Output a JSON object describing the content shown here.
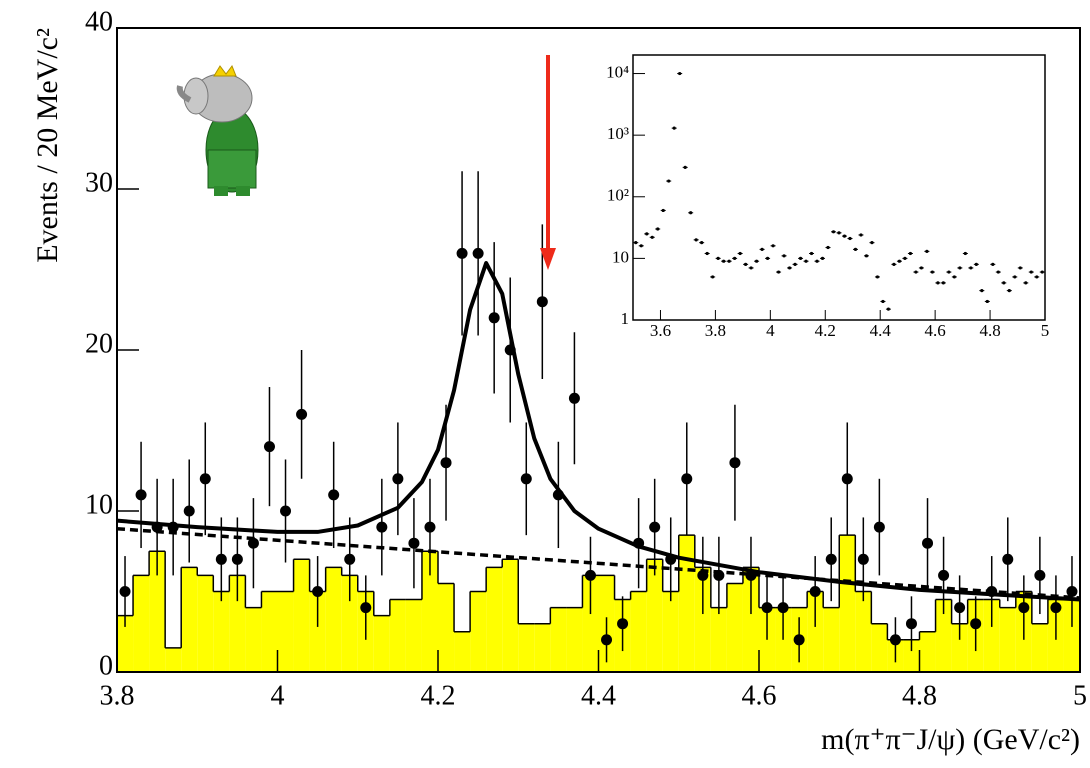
{
  "chart_data": [
    {
      "type": "errorbar",
      "x_label": "m(π⁺π⁻J/ψ) (GeV/c²)",
      "y_label": "Events / 20 MeV/c²",
      "xlim": [
        3.8,
        5
      ],
      "ylim": [
        0,
        40
      ],
      "xticks": [
        3.8,
        4,
        4.2,
        4.4,
        4.6,
        4.8,
        5
      ],
      "yticks": [
        0,
        10,
        20,
        30,
        40
      ],
      "color": "#000000",
      "x": [
        3.81,
        3.83,
        3.85,
        3.87,
        3.89,
        3.91,
        3.93,
        3.95,
        3.97,
        3.99,
        4.01,
        4.03,
        4.05,
        4.07,
        4.09,
        4.11,
        4.13,
        4.15,
        4.17,
        4.19,
        4.21,
        4.23,
        4.25,
        4.27,
        4.29,
        4.31,
        4.33,
        4.35,
        4.37,
        4.39,
        4.41,
        4.43,
        4.45,
        4.47,
        4.49,
        4.51,
        4.53,
        4.55,
        4.57,
        4.59,
        4.61,
        4.63,
        4.65,
        4.67,
        4.69,
        4.71,
        4.73,
        4.75,
        4.77,
        4.79,
        4.81,
        4.83,
        4.85,
        4.87,
        4.89,
        4.91,
        4.93,
        4.95,
        4.97,
        4.99
      ],
      "values": [
        5,
        11,
        9,
        9,
        10,
        12,
        7,
        7,
        8,
        14,
        10,
        16,
        5,
        11,
        7,
        4,
        9,
        12,
        8,
        9,
        13,
        26,
        26,
        22,
        20,
        12,
        23,
        11,
        17,
        6,
        2,
        3,
        8,
        9,
        7,
        12,
        6,
        6,
        13,
        6,
        4,
        4,
        2,
        5,
        7,
        12,
        7,
        9,
        2,
        3,
        8,
        6,
        4,
        3,
        5,
        7,
        4,
        6,
        4,
        5
      ],
      "errors": [
        2.2,
        3.3,
        3,
        3,
        3.2,
        3.5,
        2.6,
        2.6,
        2.8,
        3.7,
        3.2,
        4,
        2.2,
        3.3,
        2.6,
        2,
        3,
        3.5,
        2.8,
        3,
        3.6,
        5.1,
        5.1,
        4.7,
        4.5,
        3.5,
        4.8,
        3.3,
        4.1,
        2.4,
        1.4,
        1.7,
        2.8,
        3,
        2.6,
        3.5,
        2.4,
        2.4,
        3.6,
        2.4,
        2,
        2,
        1.4,
        2.2,
        2.6,
        3.5,
        2.6,
        3,
        1.4,
        1.7,
        2.8,
        2.4,
        2,
        1.7,
        2.2,
        2.6,
        2,
        2.4,
        2,
        2.2
      ],
      "background": {
        "color": "#ffff00",
        "bins": [
          3.8,
          3.82,
          3.84,
          3.86,
          3.88,
          3.9,
          3.92,
          3.94,
          3.96,
          3.98,
          4,
          4.02,
          4.04,
          4.06,
          4.08,
          4.1,
          4.12,
          4.14,
          4.16,
          4.18,
          4.2,
          4.22,
          4.24,
          4.26,
          4.28,
          4.3,
          4.32,
          4.34,
          4.36,
          4.38,
          4.4,
          4.42,
          4.44,
          4.46,
          4.48,
          4.5,
          4.52,
          4.54,
          4.56,
          4.58,
          4.6,
          4.62,
          4.64,
          4.66,
          4.68,
          4.7,
          4.72,
          4.74,
          4.76,
          4.78,
          4.8,
          4.82,
          4.84,
          4.86,
          4.88,
          4.9,
          4.92,
          4.94,
          4.96,
          4.98,
          5
        ],
        "counts": [
          3.5,
          6,
          7.5,
          1.5,
          6.5,
          6,
          5,
          6,
          4,
          5,
          5,
          7,
          5,
          6.5,
          6,
          5,
          3.5,
          4.5,
          4.5,
          7.5,
          5.5,
          2.5,
          5,
          6.5,
          7,
          3,
          3,
          4,
          4,
          6,
          6,
          4.5,
          5,
          7,
          5,
          8.5,
          6.5,
          4,
          5.5,
          6.5,
          4,
          4,
          4,
          5,
          4,
          8.5,
          5,
          3,
          2,
          2,
          2.5,
          4.5,
          3,
          4.5,
          4.5,
          4,
          5,
          3,
          4.5,
          4.5
        ]
      },
      "fit": {
        "x": [
          3.8,
          3.9,
          4,
          4.05,
          4.1,
          4.15,
          4.18,
          4.2,
          4.22,
          4.24,
          4.26,
          4.28,
          4.3,
          4.32,
          4.34,
          4.37,
          4.4,
          4.45,
          4.5,
          4.6,
          4.7,
          4.8,
          4.9,
          5
        ],
        "values": [
          9.4,
          9,
          8.7,
          8.7,
          9.1,
          10.2,
          11.8,
          13.8,
          17.5,
          22.5,
          25.4,
          23.5,
          18.5,
          14.5,
          12,
          10,
          8.9,
          7.8,
          7.1,
          6.2,
          5.6,
          5.1,
          4.8,
          4.5
        ]
      },
      "fit_background": {
        "x": [
          3.8,
          5
        ],
        "values": [
          8.9,
          4.6
        ]
      }
    },
    {
      "type": "scatter",
      "log_y": true,
      "color": "#000000",
      "xlim": [
        3.5,
        5
      ],
      "ylim": [
        1,
        20000
      ],
      "xticks": [
        3.6,
        3.8,
        4,
        4.2,
        4.4,
        4.6,
        4.8,
        5
      ],
      "yticks": [
        1,
        10,
        {
          "value": 100,
          "label": "10²"
        },
        {
          "value": 1000,
          "label": "10³"
        },
        {
          "value": 10000,
          "label": "10⁴"
        }
      ],
      "x": [
        3.51,
        3.53,
        3.55,
        3.57,
        3.59,
        3.61,
        3.63,
        3.65,
        3.67,
        3.69,
        3.71,
        3.73,
        3.75,
        3.77,
        3.79,
        3.81,
        3.83,
        3.85,
        3.87,
        3.89,
        3.91,
        3.93,
        3.95,
        3.97,
        3.99,
        4.01,
        4.03,
        4.05,
        4.07,
        4.09,
        4.11,
        4.13,
        4.15,
        4.17,
        4.19,
        4.21,
        4.23,
        4.25,
        4.27,
        4.29,
        4.31,
        4.33,
        4.35,
        4.37,
        4.39,
        4.41,
        4.43,
        4.45,
        4.47,
        4.49,
        4.51,
        4.53,
        4.55,
        4.57,
        4.59,
        4.61,
        4.63,
        4.65,
        4.67,
        4.69,
        4.71,
        4.73,
        4.75,
        4.77,
        4.79,
        4.81,
        4.83,
        4.85,
        4.87,
        4.89,
        4.91,
        4.93,
        4.95,
        4.97,
        4.99
      ],
      "values": [
        18,
        16,
        25,
        22,
        30,
        60,
        180,
        1300,
        10000,
        300,
        55,
        20,
        18,
        12,
        5,
        10,
        9,
        9,
        10,
        12,
        8,
        7,
        9,
        14,
        10,
        16,
        6,
        11,
        7,
        8,
        10,
        9,
        12,
        9,
        10,
        15,
        27,
        26,
        23,
        21,
        14,
        24,
        11,
        18,
        5,
        2,
        1.5,
        8,
        9,
        10,
        12,
        6,
        7,
        13,
        6,
        4,
        4,
        6,
        5,
        7,
        12,
        7,
        8,
        3,
        2,
        8,
        6,
        4,
        3,
        5,
        7,
        4,
        6,
        5,
        6
      ]
    }
  ]
}
